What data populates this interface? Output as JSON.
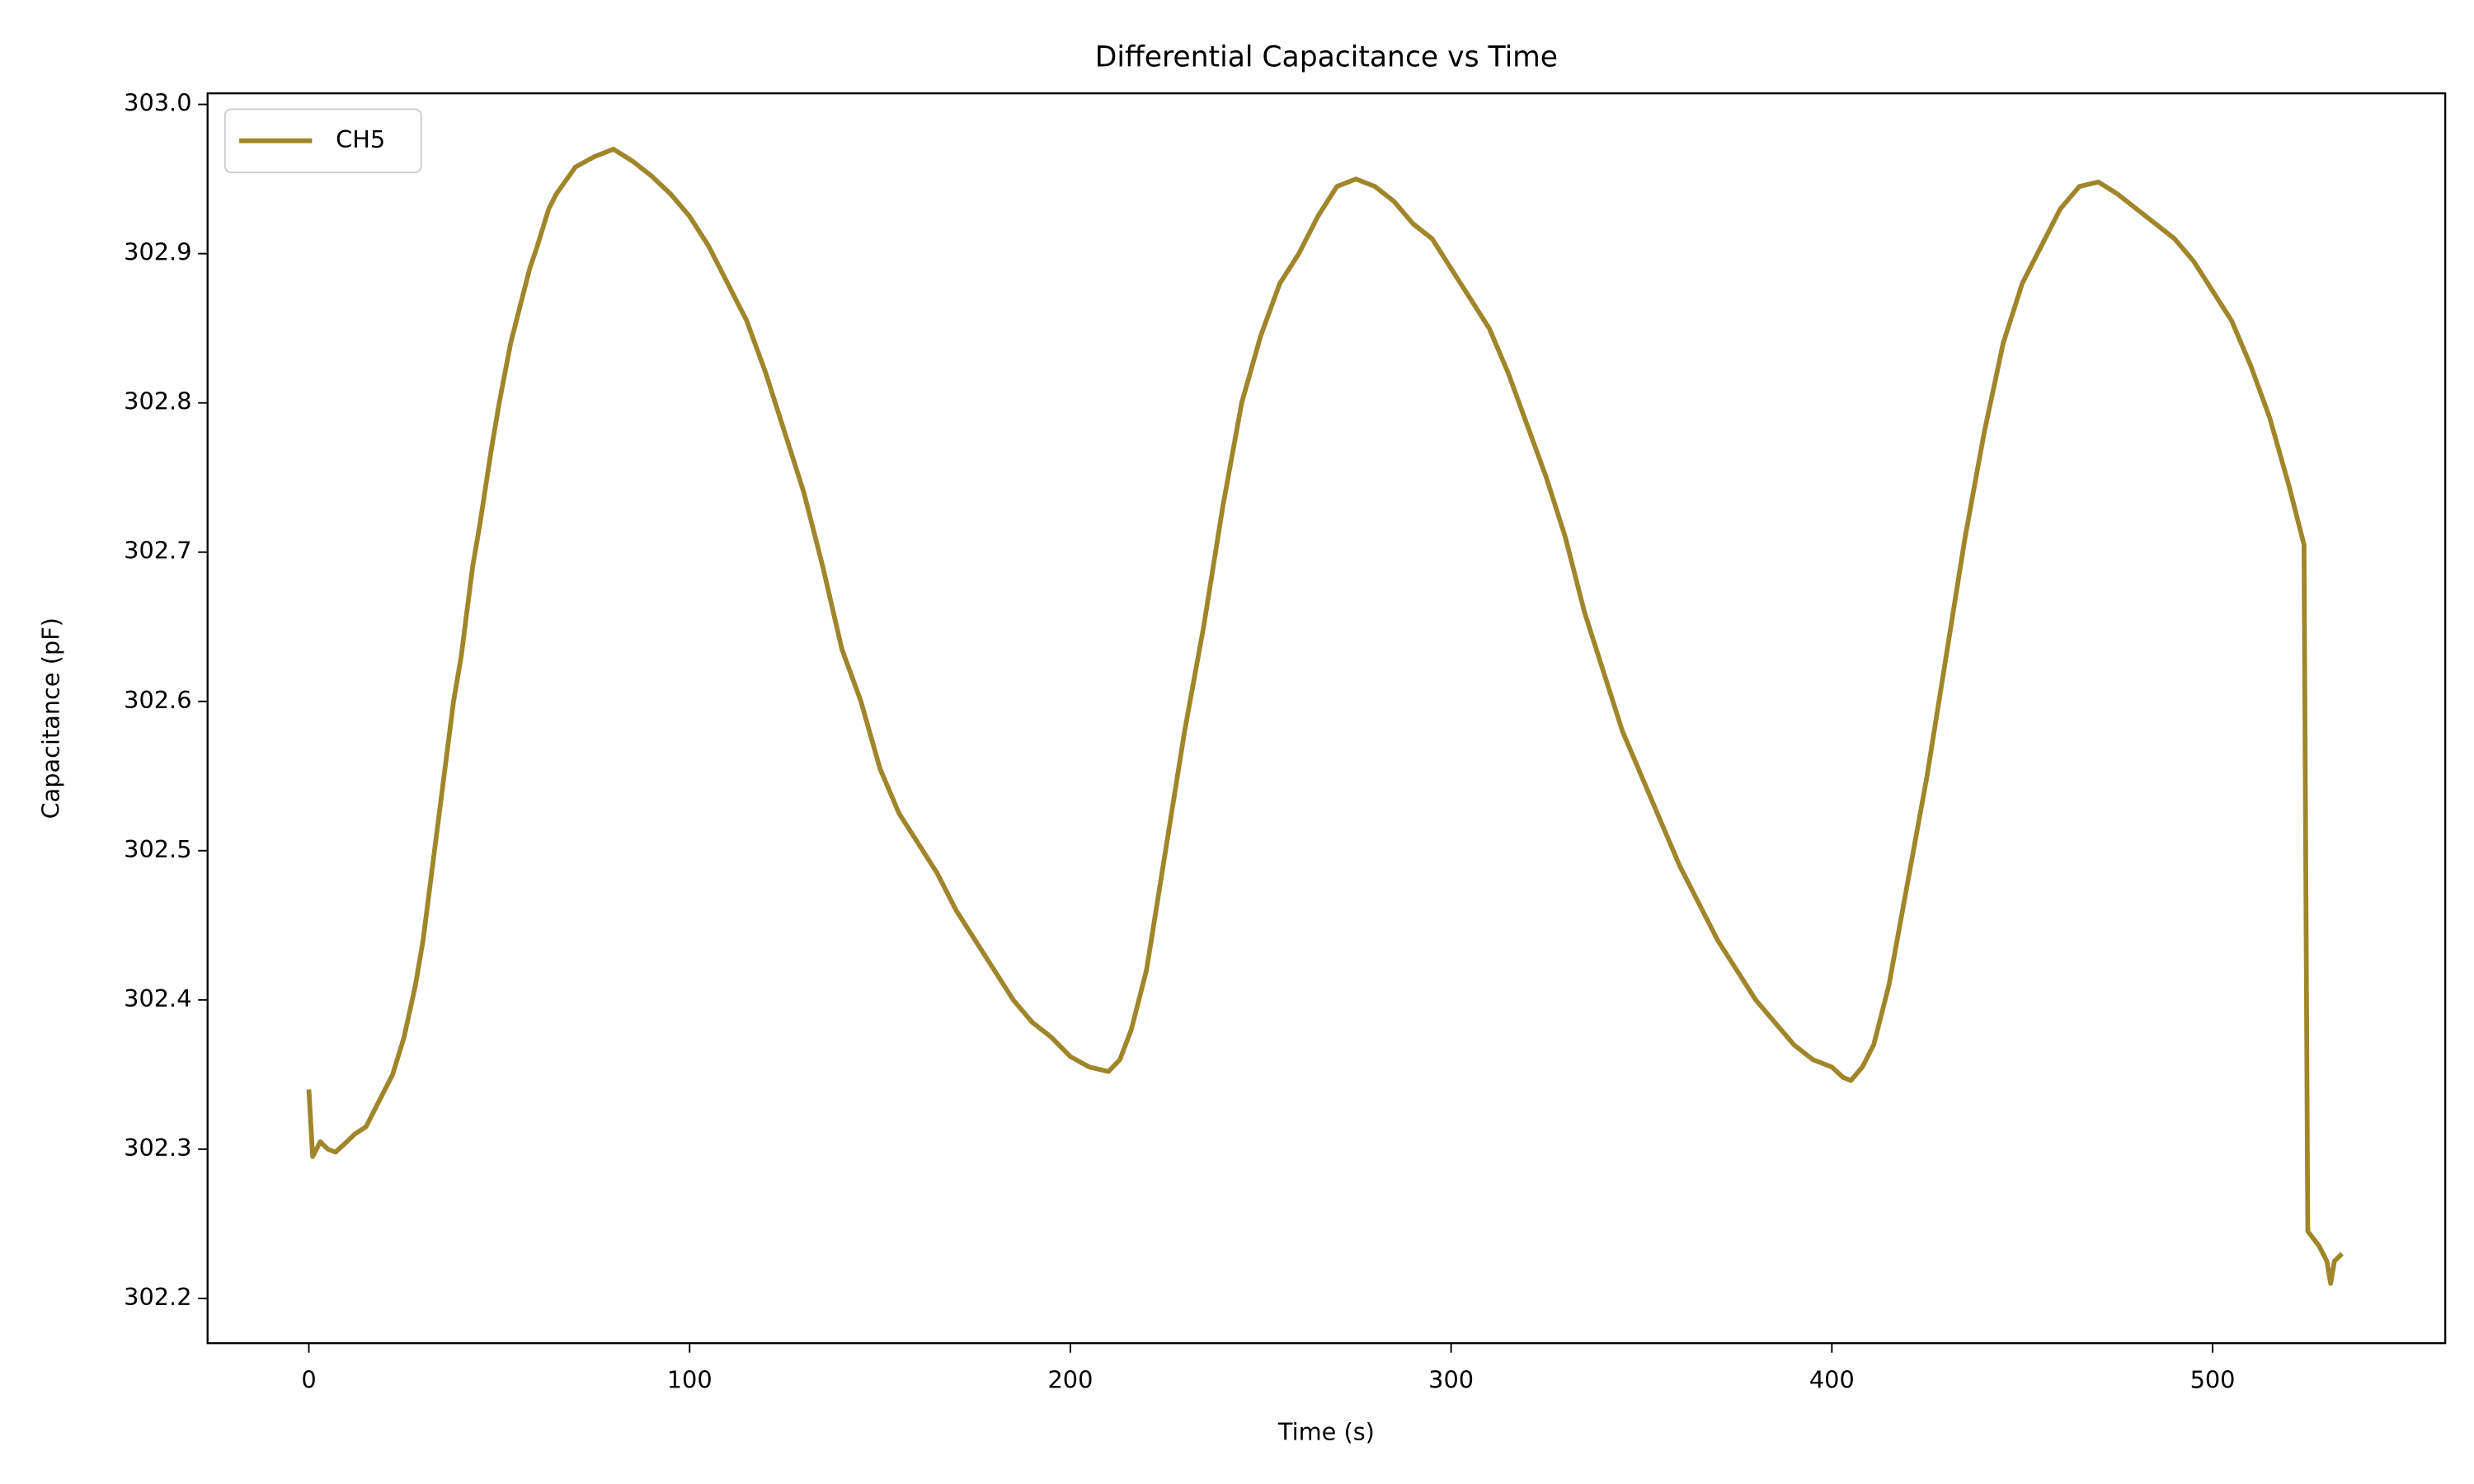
{
  "chart_data": {
    "type": "line",
    "title": "Differential Capacitance vs Time",
    "xlabel": "Time (s)",
    "ylabel": "Capacitance (pF)",
    "x": [
      0,
      1,
      3,
      5,
      7,
      10,
      12,
      15,
      18,
      20,
      22,
      25,
      28,
      30,
      33,
      35,
      38,
      40,
      43,
      45,
      48,
      50,
      53,
      55,
      58,
      60,
      63,
      65,
      70,
      75,
      80,
      85,
      90,
      95,
      100,
      105,
      110,
      115,
      120,
      125,
      130,
      135,
      140,
      145,
      150,
      155,
      160,
      165,
      170,
      175,
      180,
      185,
      190,
      195,
      200,
      205,
      210,
      213,
      216,
      220,
      225,
      230,
      235,
      240,
      245,
      250,
      255,
      260,
      265,
      270,
      275,
      280,
      285,
      290,
      295,
      300,
      305,
      310,
      315,
      320,
      325,
      330,
      335,
      340,
      345,
      350,
      355,
      360,
      365,
      370,
      375,
      380,
      385,
      390,
      395,
      400,
      403,
      405,
      408,
      411,
      415,
      420,
      425,
      430,
      435,
      440,
      445,
      450,
      455,
      460,
      465,
      470,
      475,
      480,
      485,
      490,
      495,
      500,
      505,
      510,
      515,
      520,
      524,
      525,
      528,
      530,
      531,
      532,
      534
    ],
    "series": [
      {
        "name": "CH5",
        "color": "#a0862a",
        "values": [
          302.34,
          302.295,
          302.305,
          302.3,
          302.298,
          302.305,
          302.31,
          302.315,
          302.33,
          302.34,
          302.35,
          302.375,
          302.41,
          302.44,
          302.5,
          302.54,
          302.6,
          302.63,
          302.69,
          302.72,
          302.77,
          302.8,
          302.84,
          302.86,
          302.89,
          302.905,
          302.93,
          302.94,
          302.958,
          302.965,
          302.97,
          302.962,
          302.952,
          302.94,
          302.925,
          302.905,
          302.88,
          302.855,
          302.82,
          302.78,
          302.74,
          302.69,
          302.635,
          302.6,
          302.555,
          302.525,
          302.505,
          302.485,
          302.46,
          302.44,
          302.42,
          302.4,
          302.385,
          302.375,
          302.362,
          302.355,
          302.352,
          302.36,
          302.38,
          302.42,
          302.5,
          302.58,
          302.65,
          302.73,
          302.8,
          302.845,
          302.88,
          302.9,
          302.925,
          302.945,
          302.95,
          302.945,
          302.935,
          302.92,
          302.91,
          302.89,
          302.87,
          302.85,
          302.82,
          302.785,
          302.75,
          302.71,
          302.66,
          302.62,
          302.58,
          302.55,
          302.52,
          302.49,
          302.465,
          302.44,
          302.42,
          302.4,
          302.385,
          302.37,
          302.36,
          302.355,
          302.348,
          302.346,
          302.355,
          302.37,
          302.41,
          302.48,
          302.55,
          302.63,
          302.71,
          302.78,
          302.84,
          302.88,
          302.905,
          302.93,
          302.945,
          302.948,
          302.94,
          302.93,
          302.92,
          302.91,
          302.895,
          302.875,
          302.855,
          302.825,
          302.79,
          302.745,
          302.705,
          302.245,
          302.235,
          302.225,
          302.21,
          302.225,
          302.23
        ]
      }
    ],
    "xlim": [
      -26.6,
      561.1
    ],
    "ylim": [
      302.17,
      303.0074
    ],
    "xticks": [
      0,
      100,
      200,
      300,
      400,
      500
    ],
    "yticks": [
      {
        "value": 302.2,
        "label": "302.2"
      },
      {
        "value": 302.3,
        "label": "302.3"
      },
      {
        "value": 302.4,
        "label": "302.4"
      },
      {
        "value": 302.5,
        "label": "302.5"
      },
      {
        "value": 302.6,
        "label": "302.6"
      },
      {
        "value": 302.7,
        "label": "302.7"
      },
      {
        "value": 302.8,
        "label": "302.8"
      },
      {
        "value": 302.9,
        "label": "302.9"
      },
      {
        "value": 303.0,
        "label": "303.0"
      }
    ],
    "grid": false,
    "legend": "upper-left"
  }
}
